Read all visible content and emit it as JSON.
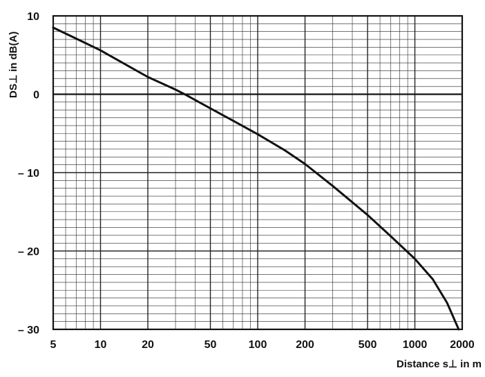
{
  "chart_data": {
    "type": "line",
    "xlabel": "Distance  s⊥  in m",
    "ylabel": "DS⊥  in dB(A)",
    "x_scale": "log",
    "xlim": [
      5,
      2000
    ],
    "ylim": [
      -30,
      10
    ],
    "x_ticks": [
      5,
      10,
      20,
      50,
      100,
      200,
      500,
      1000,
      2000
    ],
    "x_tick_labels": [
      "5",
      "10",
      "20",
      "50",
      "100",
      "200",
      "500",
      "1000",
      "2000"
    ],
    "y_ticks": [
      10,
      0,
      -10,
      -20,
      -30
    ],
    "y_tick_labels": [
      "10",
      "0",
      "– 10",
      "– 20",
      "– 30"
    ],
    "grid": true,
    "curve_color": "#111111",
    "grid_color": "#222222",
    "series": [
      {
        "x": [
          5,
          7,
          10,
          15,
          20,
          30,
          35,
          50,
          70,
          100,
          150,
          200,
          300,
          500,
          700,
          1000,
          1300,
          1600,
          1900
        ],
        "y": [
          8.5,
          7.1,
          5.6,
          3.6,
          2.2,
          0.6,
          -0.1,
          -1.8,
          -3.4,
          -5.1,
          -7.2,
          -8.9,
          -11.7,
          -15.4,
          -18.1,
          -21.0,
          -23.6,
          -26.6,
          -30.0
        ]
      }
    ]
  }
}
